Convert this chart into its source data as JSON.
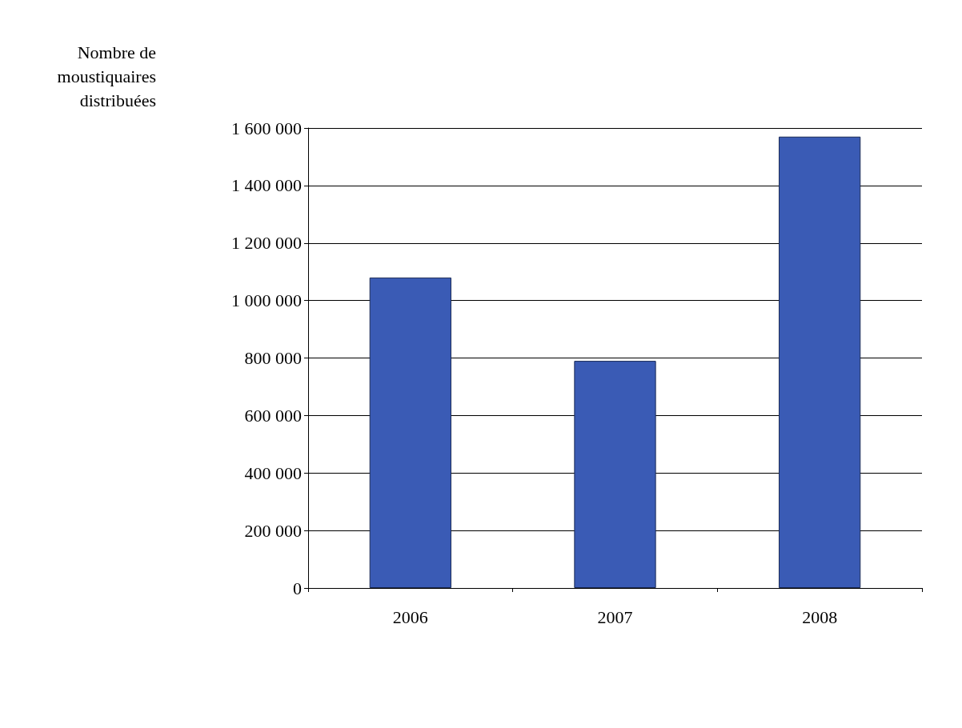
{
  "chart_data": {
    "type": "bar",
    "ylabel": "Nombre de\nmoustiquaires\ndistribuées",
    "categories": [
      "2006",
      "2007",
      "2008"
    ],
    "values": [
      1080000,
      790000,
      1570000
    ],
    "color": "#3a5bb5",
    "ylim": [
      0,
      1600000
    ],
    "yticks": [
      {
        "value": 0,
        "label": "0"
      },
      {
        "value": 200000,
        "label": "200 000"
      },
      {
        "value": 400000,
        "label": "400 000"
      },
      {
        "value": 600000,
        "label": "600 000"
      },
      {
        "value": 800000,
        "label": "800 000"
      },
      {
        "value": 1000000,
        "label": "1 000 000"
      },
      {
        "value": 1200000,
        "label": "1 200 000"
      },
      {
        "value": 1400000,
        "label": "1 400 000"
      },
      {
        "value": 1600000,
        "label": "1 600 000"
      }
    ],
    "grid": "y"
  }
}
